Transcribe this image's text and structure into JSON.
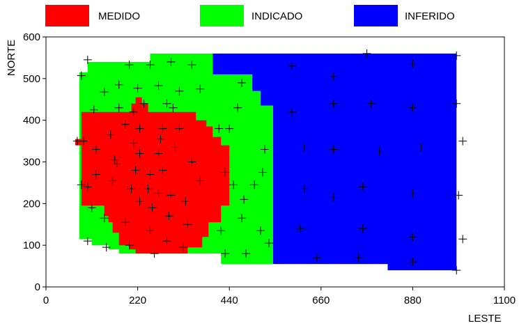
{
  "chart_data": {
    "type": "map",
    "xlabel": "LESTE",
    "ylabel": "NORTE",
    "xlim": [
      0,
      1100
    ],
    "ylim": [
      0,
      600
    ],
    "xticks": [
      0,
      220,
      440,
      660,
      880,
      1100
    ],
    "yticks": [
      0,
      100,
      200,
      300,
      400,
      500,
      600
    ],
    "legend_placement": "top",
    "categories": [
      {
        "name": "MEDIDO",
        "color": "#ff0000"
      },
      {
        "name": "INDICADO",
        "color": "#00ff00"
      },
      {
        "name": "INFERIDO",
        "color": "#0000ff"
      }
    ],
    "regions": {
      "INFERIDO": [
        [
          400,
          560
        ],
        [
          985,
          560
        ],
        [
          985,
          40
        ],
        [
          820,
          40
        ],
        [
          820,
          55
        ],
        [
          545,
          55
        ],
        [
          545,
          435
        ],
        [
          515,
          435
        ],
        [
          515,
          470
        ],
        [
          495,
          470
        ],
        [
          495,
          510
        ],
        [
          400,
          510
        ]
      ],
      "INDICADO": [
        [
          80,
          515
        ],
        [
          100,
          515
        ],
        [
          100,
          540
        ],
        [
          250,
          540
        ],
        [
          250,
          560
        ],
        [
          400,
          560
        ],
        [
          400,
          510
        ],
        [
          495,
          510
        ],
        [
          495,
          470
        ],
        [
          515,
          470
        ],
        [
          515,
          435
        ],
        [
          545,
          435
        ],
        [
          545,
          55
        ],
        [
          420,
          55
        ],
        [
          420,
          80
        ],
        [
          175,
          80
        ],
        [
          175,
          90
        ],
        [
          150,
          90
        ],
        [
          150,
          100
        ],
        [
          110,
          100
        ],
        [
          110,
          115
        ],
        [
          80,
          115
        ]
      ],
      "MEDIDO": [
        [
          70,
          355
        ],
        [
          85,
          355
        ],
        [
          85,
          420
        ],
        [
          205,
          420
        ],
        [
          205,
          440
        ],
        [
          215,
          440
        ],
        [
          215,
          455
        ],
        [
          230,
          455
        ],
        [
          230,
          440
        ],
        [
          245,
          440
        ],
        [
          245,
          420
        ],
        [
          360,
          420
        ],
        [
          360,
          400
        ],
        [
          385,
          400
        ],
        [
          385,
          385
        ],
        [
          400,
          385
        ],
        [
          400,
          360
        ],
        [
          420,
          360
        ],
        [
          420,
          340
        ],
        [
          440,
          340
        ],
        [
          440,
          195
        ],
        [
          420,
          195
        ],
        [
          420,
          155
        ],
        [
          390,
          155
        ],
        [
          390,
          120
        ],
        [
          375,
          120
        ],
        [
          375,
          95
        ],
        [
          340,
          95
        ],
        [
          340,
          80
        ],
        [
          215,
          80
        ],
        [
          215,
          90
        ],
        [
          200,
          90
        ],
        [
          200,
          100
        ],
        [
          175,
          100
        ],
        [
          175,
          130
        ],
        [
          160,
          130
        ],
        [
          160,
          155
        ],
        [
          150,
          155
        ],
        [
          150,
          170
        ],
        [
          140,
          170
        ],
        [
          140,
          195
        ],
        [
          85,
          195
        ],
        [
          85,
          340
        ],
        [
          70,
          340
        ]
      ]
    },
    "points": [
      [
        100,
        545
      ],
      [
        85,
        507
      ],
      [
        140,
        468
      ],
      [
        115,
        425
      ],
      [
        90,
        350
      ],
      [
        75,
        350
      ],
      [
        200,
        533
      ],
      [
        250,
        533
      ],
      [
        300,
        540
      ],
      [
        350,
        533
      ],
      [
        175,
        485
      ],
      [
        220,
        477
      ],
      [
        270,
        483
      ],
      [
        320,
        470
      ],
      [
        370,
        475
      ],
      [
        175,
        430
      ],
      [
        210,
        420
      ],
      [
        235,
        440
      ],
      [
        290,
        440
      ],
      [
        305,
        430
      ],
      [
        190,
        390
      ],
      [
        225,
        380
      ],
      [
        280,
        380
      ],
      [
        320,
        380
      ],
      [
        155,
        365
      ],
      [
        210,
        345
      ],
      [
        275,
        355
      ],
      [
        310,
        335
      ],
      [
        120,
        330
      ],
      [
        165,
        305
      ],
      [
        225,
        320
      ],
      [
        270,
        320
      ],
      [
        120,
        270
      ],
      [
        170,
        295
      ],
      [
        215,
        280
      ],
      [
        250,
        270
      ],
      [
        280,
        280
      ],
      [
        350,
        300
      ],
      [
        370,
        255
      ],
      [
        85,
        245
      ],
      [
        100,
        240
      ],
      [
        160,
        255
      ],
      [
        205,
        235
      ],
      [
        245,
        235
      ],
      [
        270,
        225
      ],
      [
        300,
        220
      ],
      [
        335,
        205
      ],
      [
        110,
        190
      ],
      [
        140,
        165
      ],
      [
        190,
        155
      ],
      [
        225,
        205
      ],
      [
        255,
        190
      ],
      [
        295,
        170
      ],
      [
        340,
        150
      ],
      [
        100,
        110
      ],
      [
        145,
        95
      ],
      [
        200,
        100
      ],
      [
        250,
        135
      ],
      [
        290,
        110
      ],
      [
        330,
        95
      ],
      [
        260,
        80
      ],
      [
        415,
        380
      ],
      [
        440,
        380
      ],
      [
        460,
        430
      ],
      [
        470,
        490
      ],
      [
        430,
        275
      ],
      [
        450,
        245
      ],
      [
        475,
        210
      ],
      [
        500,
        245
      ],
      [
        520,
        275
      ],
      [
        525,
        330
      ],
      [
        420,
        135
      ],
      [
        470,
        165
      ],
      [
        515,
        135
      ],
      [
        535,
        105
      ],
      [
        430,
        80
      ],
      [
        480,
        80
      ],
      [
        590,
        530
      ],
      [
        620,
        335
      ],
      [
        590,
        420
      ],
      [
        690,
        505
      ],
      [
        690,
        440
      ],
      [
        690,
        330
      ],
      [
        780,
        440
      ],
      [
        800,
        325
      ],
      [
        880,
        535
      ],
      [
        880,
        430
      ],
      [
        900,
        335
      ],
      [
        770,
        560
      ],
      [
        985,
        555
      ],
      [
        985,
        440
      ],
      [
        1000,
        350
      ],
      [
        620,
        235
      ],
      [
        690,
        215
      ],
      [
        760,
        240
      ],
      [
        880,
        225
      ],
      [
        990,
        220
      ],
      [
        610,
        140
      ],
      [
        760,
        140
      ],
      [
        880,
        120
      ],
      [
        1000,
        115
      ],
      [
        650,
        70
      ],
      [
        750,
        70
      ],
      [
        880,
        60
      ],
      [
        985,
        40
      ]
    ]
  }
}
